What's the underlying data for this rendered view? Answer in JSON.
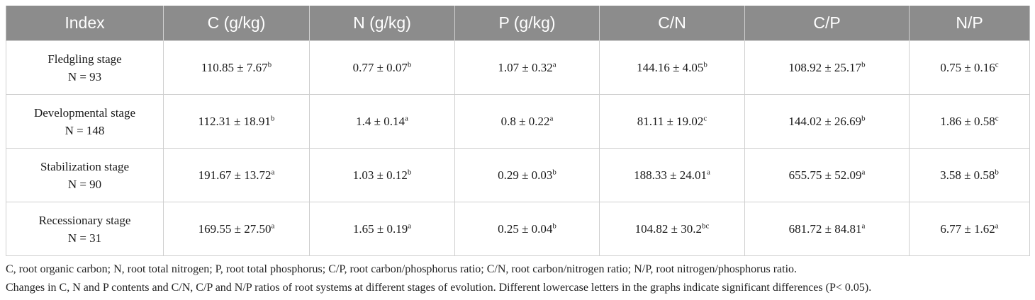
{
  "table": {
    "headers": [
      "Index",
      "C (g/kg)",
      "N (g/kg)",
      "P (g/kg)",
      "C/N",
      "C/P",
      "N/P"
    ],
    "rows": [
      {
        "stage": "Fledgling stage",
        "n": "N = 93",
        "cells": [
          {
            "value": "110.85 ± 7.67",
            "sig": "b"
          },
          {
            "value": "0.77 ± 0.07",
            "sig": "b"
          },
          {
            "value": "1.07 ± 0.32",
            "sig": "a"
          },
          {
            "value": "144.16 ± 4.05",
            "sig": "b"
          },
          {
            "value": "108.92 ± 25.17",
            "sig": "b"
          },
          {
            "value": "0.75 ± 0.16",
            "sig": "c"
          }
        ]
      },
      {
        "stage": "Developmental stage",
        "n": "N = 148",
        "cells": [
          {
            "value": "112.31 ± 18.91",
            "sig": "b"
          },
          {
            "value": "1.4 ± 0.14",
            "sig": "a"
          },
          {
            "value": "0.8 ± 0.22",
            "sig": "a"
          },
          {
            "value": "81.11 ± 19.02",
            "sig": "c"
          },
          {
            "value": "144.02 ± 26.69",
            "sig": "b"
          },
          {
            "value": "1.86 ± 0.58",
            "sig": "c"
          }
        ]
      },
      {
        "stage": "Stabilization stage",
        "n": "N = 90",
        "cells": [
          {
            "value": "191.67 ± 13.72",
            "sig": "a"
          },
          {
            "value": "1.03 ± 0.12",
            "sig": "b"
          },
          {
            "value": "0.29 ± 0.03",
            "sig": "b"
          },
          {
            "value": "188.33 ± 24.01",
            "sig": "a"
          },
          {
            "value": "655.75 ± 52.09",
            "sig": "a"
          },
          {
            "value": "3.58 ± 0.58",
            "sig": "b"
          }
        ]
      },
      {
        "stage": "Recessionary stage",
        "n": "N = 31",
        "cells": [
          {
            "value": "169.55 ± 27.50",
            "sig": "a"
          },
          {
            "value": "1.65 ± 0.19",
            "sig": "a"
          },
          {
            "value": "0.25 ± 0.04",
            "sig": "b"
          },
          {
            "value": "104.82 ± 30.2",
            "sig": "bc"
          },
          {
            "value": "681.72 ± 84.81",
            "sig": "a"
          },
          {
            "value": "6.77 ± 1.62",
            "sig": "a"
          }
        ]
      }
    ]
  },
  "notes": {
    "abbreviations": "C, root organic carbon; N, root total nitrogen; P, root total phosphorus; C/P, root carbon/phosphorus ratio; C/N, root carbon/nitrogen ratio; N/P, root nitrogen/phosphorus ratio.",
    "caption": "Changes in C, N and P contents and C/N, C/P and N/P ratios of root systems at different stages of evolution. Different lowercase letters in the graphs indicate significant differences (P< 0.05)."
  },
  "colors": {
    "header_bg": "#8c8c8c",
    "header_text": "#ffffff",
    "grid": "#cfcfcf"
  }
}
